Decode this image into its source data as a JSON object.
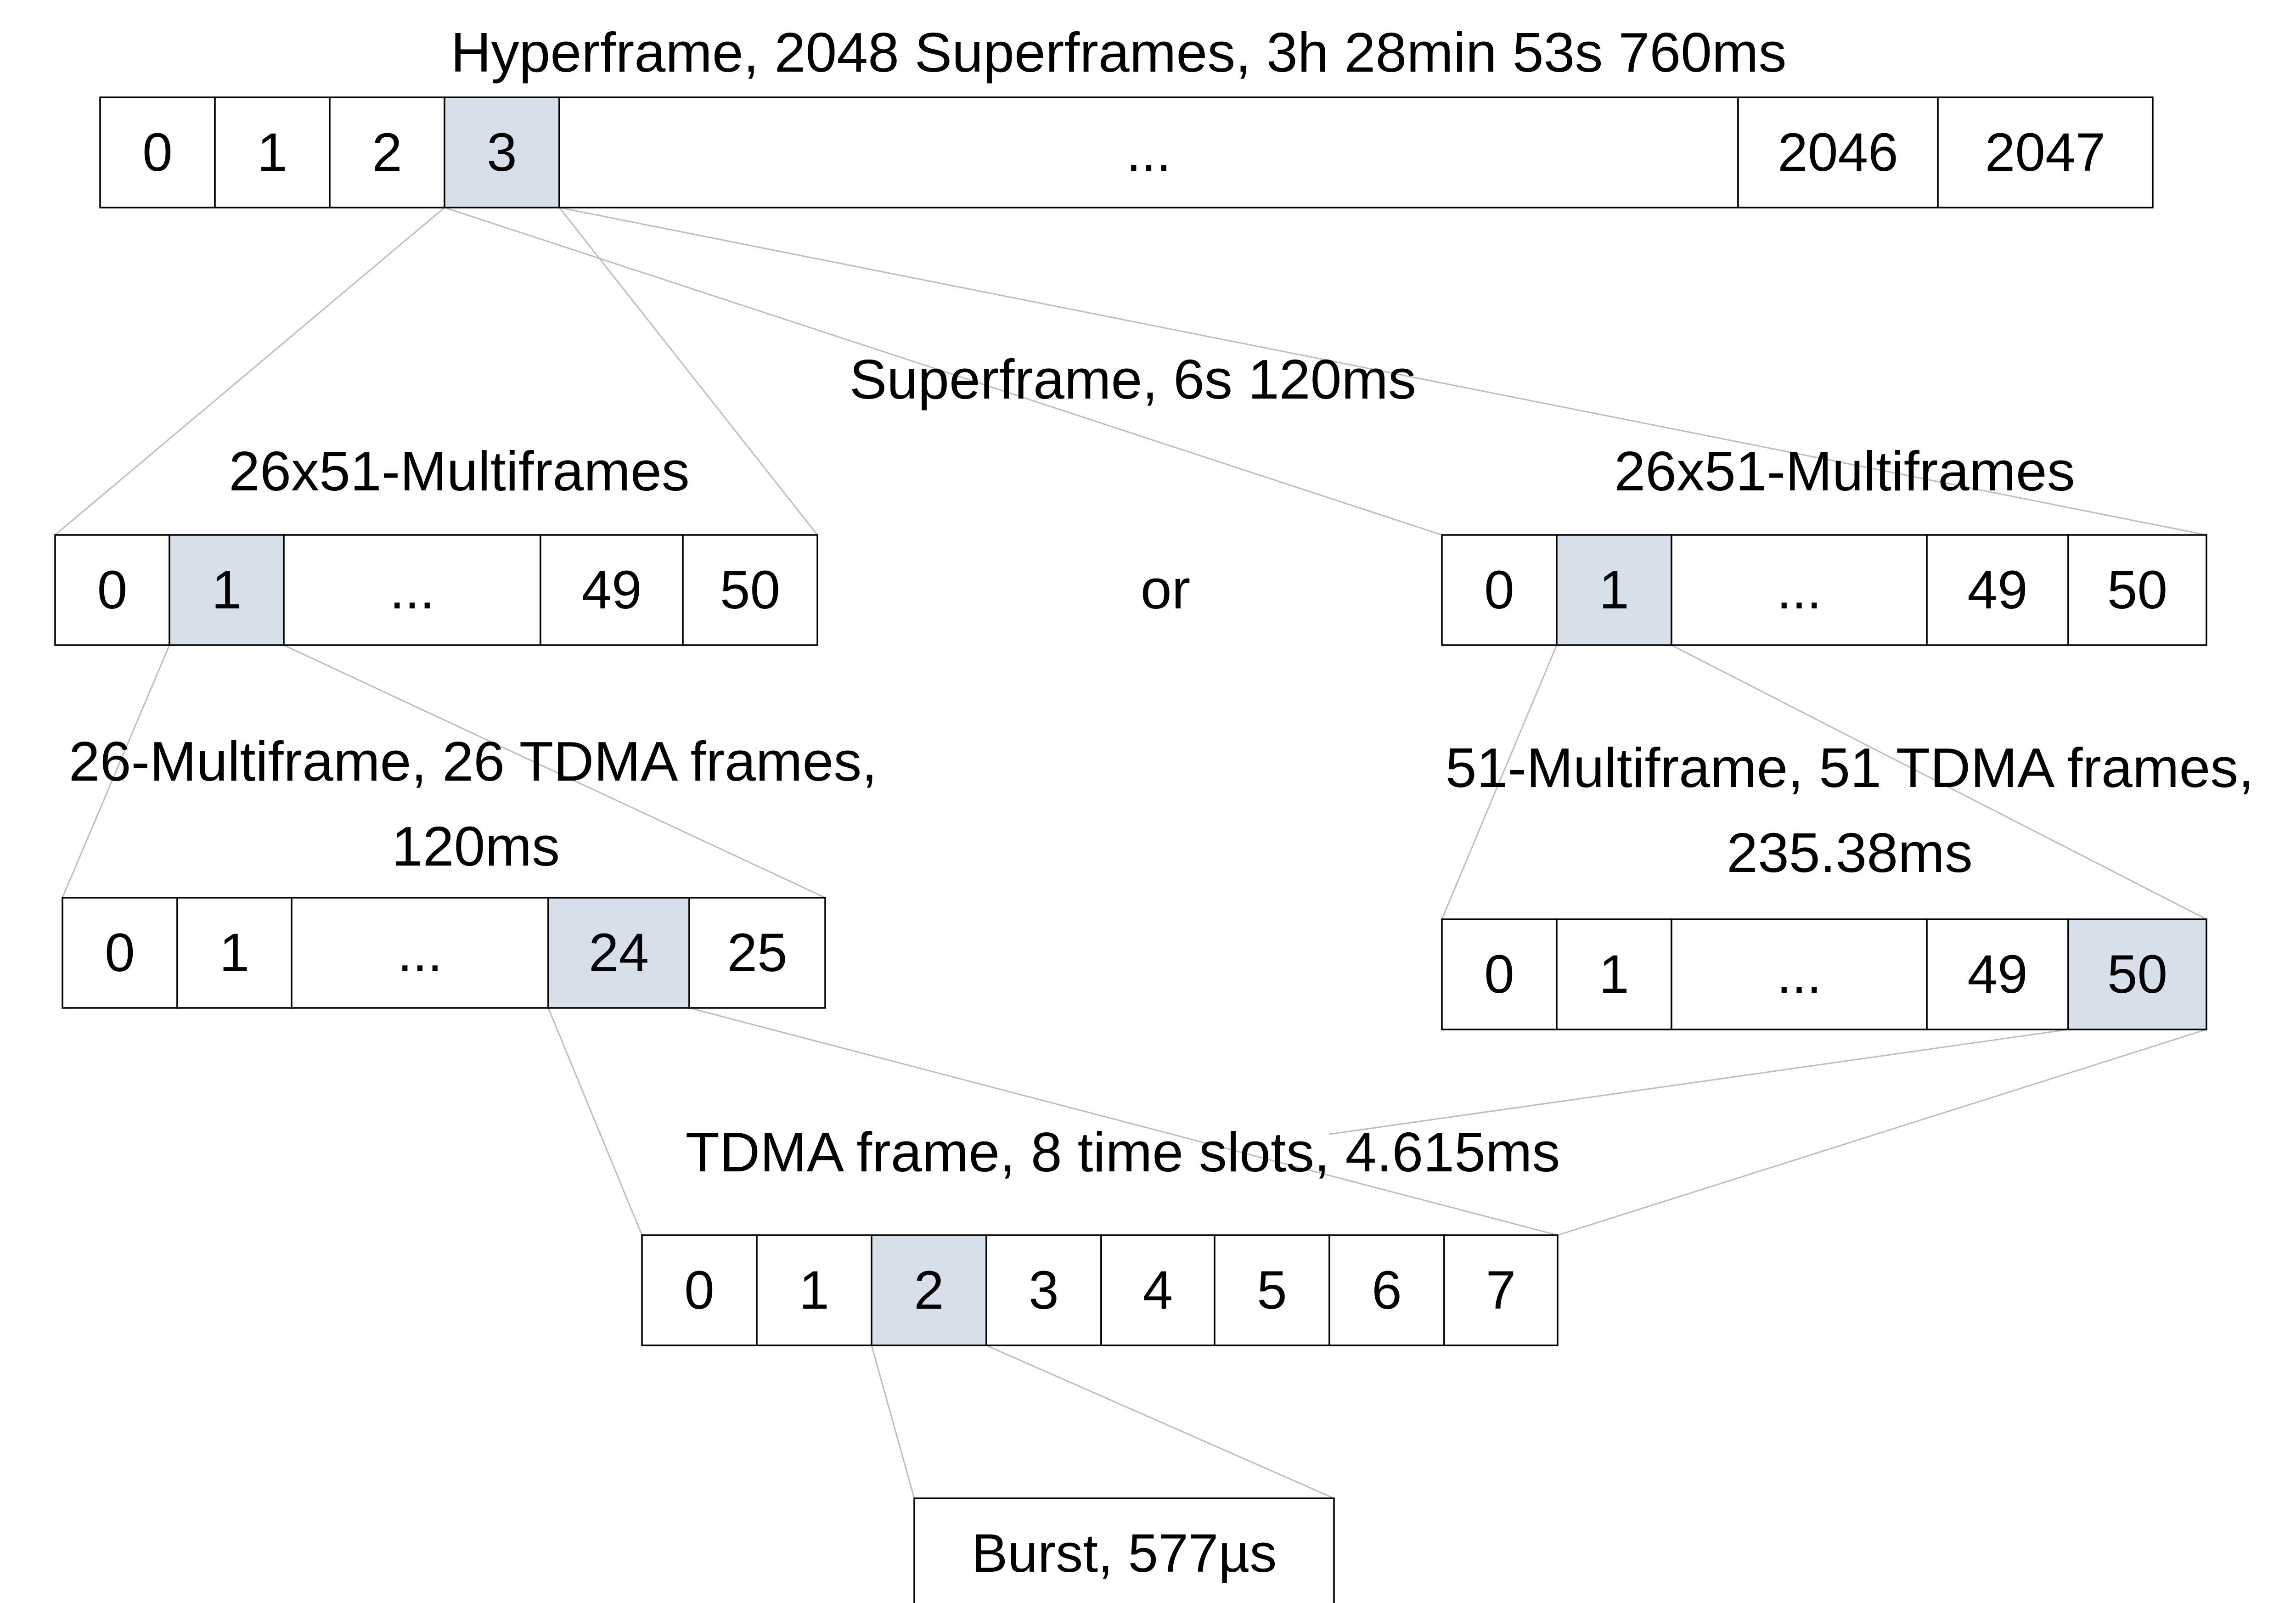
{
  "colors": {
    "highlight": "#d6dfea",
    "cell": "#ffffff",
    "border": "#000000",
    "connector": "#bdbdbd"
  },
  "hyperframe": {
    "title": "Hyperframe, 2048 Superframes, 3h 28min 53s 760ms",
    "cells": [
      {
        "label": "0",
        "highlight": false
      },
      {
        "label": "1",
        "highlight": false
      },
      {
        "label": "2",
        "highlight": false
      },
      {
        "label": "3",
        "highlight": true
      },
      {
        "label": "...",
        "highlight": false
      },
      {
        "label": "2046",
        "highlight": false
      },
      {
        "label": "2047",
        "highlight": false
      }
    ]
  },
  "superframe": {
    "title": "Superframe, 6s 120ms",
    "or_label": "or"
  },
  "multiframes_left": {
    "title": "26x51-Multiframes",
    "cells": [
      {
        "label": "0",
        "highlight": false
      },
      {
        "label": "1",
        "highlight": true
      },
      {
        "label": "...",
        "highlight": false
      },
      {
        "label": "49",
        "highlight": false
      },
      {
        "label": "50",
        "highlight": false
      }
    ]
  },
  "multiframes_right": {
    "title": "26x51-Multiframes",
    "cells": [
      {
        "label": "0",
        "highlight": false
      },
      {
        "label": "1",
        "highlight": true
      },
      {
        "label": "...",
        "highlight": false
      },
      {
        "label": "49",
        "highlight": false
      },
      {
        "label": "50",
        "highlight": false
      }
    ]
  },
  "multiframe26": {
    "title_line1": "26-Multiframe, 26 TDMA frames,",
    "title_line2": "120ms",
    "cells": [
      {
        "label": "0",
        "highlight": false
      },
      {
        "label": "1",
        "highlight": false
      },
      {
        "label": "...",
        "highlight": false
      },
      {
        "label": "24",
        "highlight": true
      },
      {
        "label": "25",
        "highlight": false
      }
    ]
  },
  "multiframe51": {
    "title_line1": "51-Multiframe, 51 TDMA frames,",
    "title_line2": "235.38ms",
    "cells": [
      {
        "label": "0",
        "highlight": false
      },
      {
        "label": "1",
        "highlight": false
      },
      {
        "label": "...",
        "highlight": false
      },
      {
        "label": "49",
        "highlight": false
      },
      {
        "label": "50",
        "highlight": true
      }
    ]
  },
  "tdma_frame": {
    "title": "TDMA frame, 8 time slots, 4.615ms",
    "cells": [
      {
        "label": "0",
        "highlight": false
      },
      {
        "label": "1",
        "highlight": false
      },
      {
        "label": "2",
        "highlight": true
      },
      {
        "label": "3",
        "highlight": false
      },
      {
        "label": "4",
        "highlight": false
      },
      {
        "label": "5",
        "highlight": false
      },
      {
        "label": "6",
        "highlight": false
      },
      {
        "label": "7",
        "highlight": false
      }
    ]
  },
  "burst": {
    "label": "Burst, 577µs"
  }
}
